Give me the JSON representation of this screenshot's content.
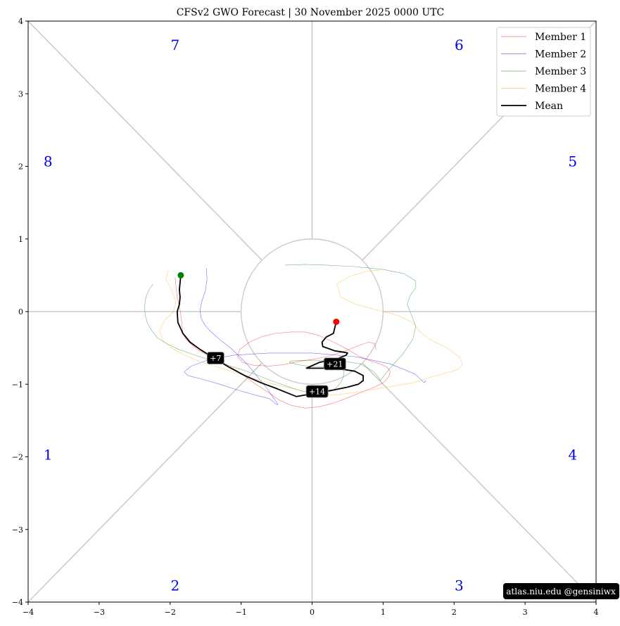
{
  "chart_data": {
    "type": "line",
    "title": "CFSv2 GWO Forecast   |   30  November  2025 0000 UTC",
    "xlim": [
      -4,
      4
    ],
    "ylim": [
      -4,
      4
    ],
    "xticks": [
      -4,
      -3,
      -2,
      -1,
      0,
      1,
      2,
      3,
      4
    ],
    "yticks": [
      -4,
      -3,
      -2,
      -1,
      0,
      1,
      2,
      3,
      4
    ],
    "xtick_labels": [
      "−4",
      "−3",
      "−2",
      "−1",
      "0",
      "1",
      "2",
      "3",
      "4"
    ],
    "ytick_labels": [
      "−4",
      "−3",
      "−2",
      "−1",
      "0",
      "1",
      "2",
      "3",
      "4"
    ],
    "grid": false,
    "unit_circle_radius": 1,
    "phases": [
      {
        "label": "1",
        "x": -3.72,
        "y": -1.97
      },
      {
        "label": "2",
        "x": -1.93,
        "y": -3.77
      },
      {
        "label": "3",
        "x": 2.07,
        "y": -3.77
      },
      {
        "label": "4",
        "x": 3.67,
        "y": -1.97
      },
      {
        "label": "5",
        "x": 3.67,
        "y": 2.07
      },
      {
        "label": "6",
        "x": 2.07,
        "y": 3.67
      },
      {
        "label": "7",
        "x": -1.93,
        "y": 3.67
      },
      {
        "label": "8",
        "x": -3.72,
        "y": 2.07
      }
    ],
    "series": [
      {
        "name": "Member 1",
        "color": "#ff0000",
        "width": 0.6,
        "opacity": 0.55,
        "x": [
          -1.93,
          -1.92,
          -1.9,
          -1.86,
          -1.84,
          -1.83,
          -1.82,
          -1.78,
          -1.7,
          -1.62,
          -1.52,
          -1.42,
          -1.32,
          -1.18,
          -1.05,
          -0.92,
          -0.78,
          -0.62,
          -0.48,
          -0.3,
          -0.1,
          0.1,
          0.3,
          0.52,
          0.72,
          0.88,
          1,
          1.08,
          1.1,
          1.05,
          0.95,
          0.8,
          0.65,
          0.5,
          0.3,
          0.1,
          -0.1,
          -0.3,
          -0.52,
          -0.72,
          -0.88,
          -1.02,
          -1.05,
          -0.98,
          -0.82,
          -0.6,
          -0.4,
          -0.2,
          0,
          0.2,
          0.42,
          0.62,
          0.8,
          0.88,
          0.9
        ],
        "y": [
          0.47,
          0.38,
          0.2,
          0.02,
          -0.12,
          -0.22,
          -0.3,
          -0.38,
          -0.45,
          -0.52,
          -0.58,
          -0.62,
          -0.67,
          -0.74,
          -0.82,
          -0.91,
          -1.01,
          -1.11,
          -1.21,
          -1.29,
          -1.33,
          -1.31,
          -1.26,
          -1.18,
          -1.1,
          -1.04,
          -0.98,
          -0.9,
          -0.82,
          -0.76,
          -0.72,
          -0.67,
          -0.61,
          -0.52,
          -0.42,
          -0.33,
          -0.28,
          -0.28,
          -0.3,
          -0.35,
          -0.42,
          -0.52,
          -0.62,
          -0.7,
          -0.74,
          -0.75,
          -0.73,
          -0.69,
          -0.66,
          -0.62,
          -0.56,
          -0.48,
          -0.42,
          -0.44,
          -0.52
        ]
      },
      {
        "name": "Member 2",
        "color": "#0000ff",
        "width": 0.6,
        "opacity": 0.55,
        "x": [
          -1.49,
          -1.48,
          -1.5,
          -1.55,
          -1.58,
          -1.56,
          -1.5,
          -1.4,
          -1.28,
          -1.15,
          -1.02,
          -0.9,
          -0.8,
          -0.7,
          -0.62,
          -0.55,
          -0.5,
          -0.48,
          -0.5,
          -0.6,
          -0.8,
          -1.05,
          -1.3,
          -1.55,
          -1.75,
          -1.8,
          -1.7,
          -1.45,
          -1.1,
          -0.6,
          0,
          0.6,
          1.1,
          1.45,
          1.58,
          1.6
        ],
        "y": [
          0.6,
          0.45,
          0.3,
          0.15,
          0.02,
          -0.1,
          -0.2,
          -0.3,
          -0.4,
          -0.5,
          -0.62,
          -0.74,
          -0.86,
          -0.98,
          -1.08,
          -1.18,
          -1.25,
          -1.28,
          -1.28,
          -1.2,
          -1.15,
          -1.08,
          -1.0,
          -0.93,
          -0.88,
          -0.83,
          -0.75,
          -0.66,
          -0.6,
          -0.57,
          -0.57,
          -0.62,
          -0.72,
          -0.86,
          -0.98,
          -0.95
        ]
      },
      {
        "name": "Member 3",
        "color": "#008000",
        "width": 0.6,
        "opacity": 0.55,
        "x": [
          -2.24,
          -2.3,
          -2.34,
          -2.36,
          -2.35,
          -2.32,
          -2.26,
          -2.18,
          -2.05,
          -1.88,
          -1.68,
          -1.46,
          -1.22,
          -0.98,
          -0.76,
          -0.55,
          -0.35,
          -0.16,
          0,
          0.14,
          0.26,
          0.34,
          0.4,
          0.44,
          0.45,
          0.4,
          0.22,
          0,
          -0.2,
          -0.32,
          -0.3,
          -0.1,
          0.15,
          0.42,
          0.68,
          0.86,
          0.95,
          0.96,
          1.08,
          1.28,
          1.42,
          1.46,
          1.4,
          1.34,
          1.38,
          1.46,
          1.46,
          1.3,
          1.0,
          0.6,
          0.2,
          -0.1,
          -0.38
        ],
        "y": [
          0.38,
          0.3,
          0.2,
          0.08,
          -0.05,
          -0.16,
          -0.26,
          -0.36,
          -0.44,
          -0.52,
          -0.59,
          -0.66,
          -0.73,
          -0.8,
          -0.88,
          -0.96,
          -1.03,
          -1.09,
          -1.12,
          -1.12,
          -1.1,
          -1.05,
          -0.98,
          -0.9,
          -0.82,
          -0.78,
          -0.76,
          -0.76,
          -0.73,
          -0.7,
          -0.68,
          -0.67,
          -0.67,
          -0.68,
          -0.72,
          -0.82,
          -0.92,
          -0.95,
          -0.8,
          -0.58,
          -0.38,
          -0.2,
          -0.05,
          0.1,
          0.22,
          0.33,
          0.42,
          0.52,
          0.58,
          0.62,
          0.64,
          0.65,
          0.64
        ]
      },
      {
        "name": "Member 4",
        "color": "#ffa500",
        "width": 0.6,
        "opacity": 0.55,
        "x": [
          -2.03,
          -2.06,
          -1.98,
          -1.92,
          -1.95,
          -2.08,
          -2.15,
          -2.1,
          -1.98,
          -1.8,
          -1.6,
          -1.38,
          -1.15,
          -0.9,
          -0.62,
          -0.32,
          -0.02,
          0.32,
          0.7,
          1.05,
          1.42,
          1.75,
          2.05,
          2.12,
          2.08,
          1.9,
          1.65,
          1.52,
          1.42,
          1.2,
          0.92,
          0.62,
          0.4,
          0.35,
          0.52,
          0.78,
          0.95
        ],
        "y": [
          0.56,
          0.45,
          0.3,
          0.14,
          0.0,
          -0.12,
          -0.26,
          -0.4,
          -0.5,
          -0.6,
          -0.68,
          -0.75,
          -0.82,
          -0.9,
          -0.98,
          -1.05,
          -1.12,
          -1.15,
          -1.1,
          -1.04,
          -0.98,
          -0.88,
          -0.8,
          -0.73,
          -0.63,
          -0.5,
          -0.38,
          -0.28,
          -0.15,
          -0.05,
          0.02,
          0.1,
          0.2,
          0.38,
          0.48,
          0.56,
          0.57
        ]
      },
      {
        "name": "Mean",
        "color": "#000000",
        "width": 1.8,
        "opacity": 1,
        "x": [
          -1.85,
          -1.86,
          -1.87,
          -1.86,
          -1.87,
          -1.9,
          -1.89,
          -1.82,
          -1.72,
          -1.58,
          -1.4,
          -1.18,
          -0.95,
          -0.72,
          -0.5,
          -0.35,
          -0.22,
          -0.05,
          0.1,
          0.3,
          0.5,
          0.65,
          0.72,
          0.72,
          0.6,
          0.4,
          0.2,
          0,
          -0.08,
          0.1,
          0.35,
          0.48,
          0.5,
          0.45,
          0.32,
          0.15,
          0.14,
          0.2,
          0.3,
          0.32,
          0.34
        ],
        "y": [
          0.5,
          0.4,
          0.3,
          0.2,
          0.1,
          0.0,
          -0.15,
          -0.3,
          -0.42,
          -0.52,
          -0.63,
          -0.76,
          -0.88,
          -0.98,
          -1.06,
          -1.12,
          -1.17,
          -1.14,
          -1.11,
          -1.08,
          -1.04,
          -1.0,
          -0.95,
          -0.88,
          -0.82,
          -0.79,
          -0.78,
          -0.78,
          -0.78,
          -0.7,
          -0.65,
          -0.6,
          -0.57,
          -0.56,
          -0.54,
          -0.48,
          -0.42,
          -0.35,
          -0.3,
          -0.22,
          -0.14
        ]
      }
    ],
    "start_point": {
      "x": -1.85,
      "y": 0.5,
      "color": "#008000"
    },
    "end_point": {
      "x": 0.34,
      "y": -0.14,
      "color": "#ff0000"
    },
    "day_labels": [
      {
        "text": "+7",
        "x": -1.36,
        "y": -0.64
      },
      {
        "text": "+14",
        "x": 0.07,
        "y": -1.1
      },
      {
        "text": "+21",
        "x": 0.32,
        "y": -0.72
      }
    ],
    "legend": {
      "position": "top-right"
    }
  },
  "credit": "atlas.niu.edu  @gensiniwx"
}
